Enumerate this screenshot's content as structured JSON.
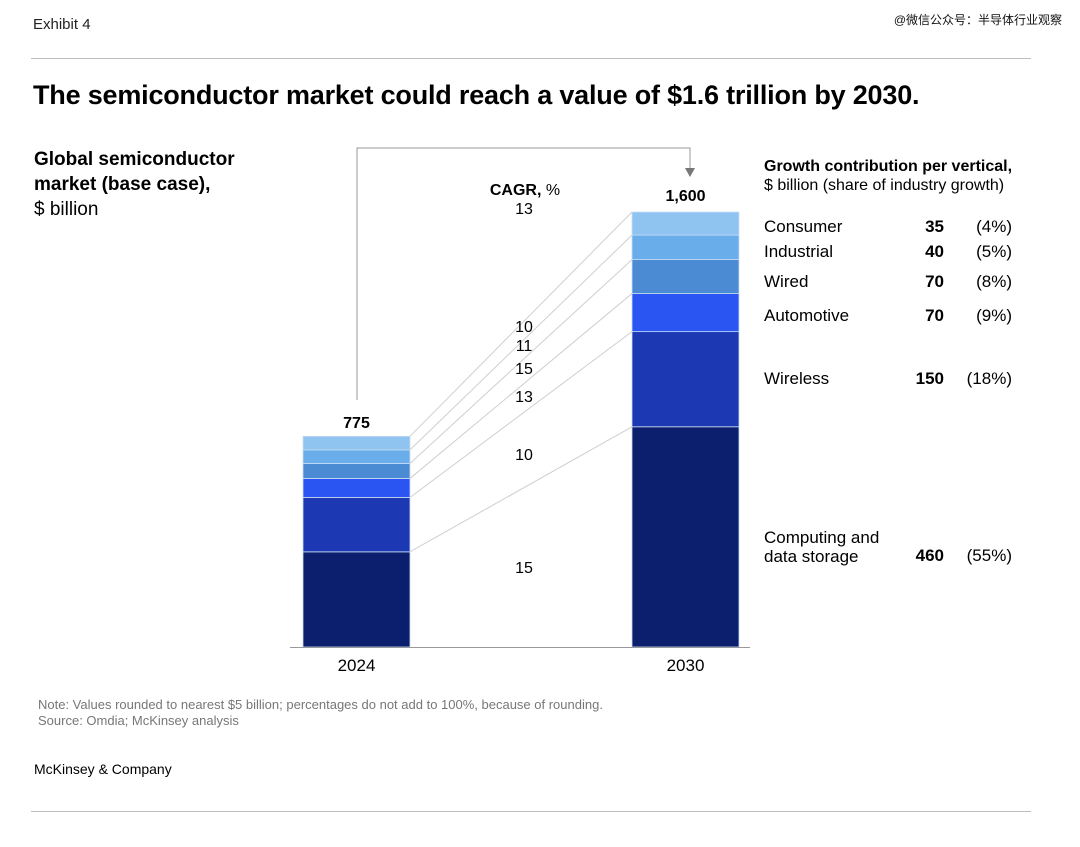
{
  "exhibit_label": "Exhibit 4",
  "watermark": "@微信公众号：半导体行业观察",
  "title": "The semiconductor market could reach a value of $1.6 trillion by 2030.",
  "colors": {
    "consumer": "#8fc4f0",
    "industrial": "#69aeea",
    "wired": "#4a8bd4",
    "automotive": "#2b55f2",
    "wireless": "#1d38b3",
    "computing": "#0c1f6e",
    "connector": "#cccccc"
  },
  "chart_data": {
    "type": "bar",
    "stacked": true,
    "title": "Global semiconductor market (base case),",
    "ylabel": "$ billion",
    "categories": [
      "2024",
      "2030"
    ],
    "totals": [
      "775",
      "1,600"
    ],
    "ylim": [
      0,
      1600
    ],
    "series": [
      {
        "name": "Computing and data storage",
        "key": "computing",
        "values": [
          350,
          810
        ],
        "cagr": "15"
      },
      {
        "name": "Wireless",
        "key": "wireless",
        "values": [
          200,
          350
        ],
        "cagr": "10"
      },
      {
        "name": "Automotive",
        "key": "automotive",
        "values": [
          70,
          140
        ],
        "cagr": "13"
      },
      {
        "name": "Wired",
        "key": "wired",
        "values": [
          55,
          125
        ],
        "cagr": "15"
      },
      {
        "name": "Industrial",
        "key": "industrial",
        "values": [
          50,
          90
        ],
        "cagr": "11"
      },
      {
        "name": "Consumer",
        "key": "consumer",
        "values": [
          50,
          85
        ],
        "cagr": "10"
      }
    ],
    "cagr_header": "CAGR,",
    "cagr_unit": " %",
    "cagr_total": "13"
  },
  "growth": {
    "header": "Growth contribution per vertical,",
    "subheader": "$ billion (share of industry growth)",
    "rows": [
      {
        "name": "Consumer",
        "value": "35",
        "share": "(4%)"
      },
      {
        "name": "Industrial",
        "value": "40",
        "share": "(5%)"
      },
      {
        "name": "Wired",
        "value": "70",
        "share": "(8%)"
      },
      {
        "name": "Automotive",
        "value": "70",
        "share": "(9%)"
      },
      {
        "name": "Wireless",
        "value": "150",
        "share": "(18%)"
      },
      {
        "name": "Computing and data storage",
        "value": "460",
        "share": "(55%)"
      }
    ]
  },
  "note": "Note: Values rounded to nearest $5 billion; percentages do not add to 100%, because of rounding.",
  "source": "Source: Omdia; McKinsey analysis",
  "brand": "McKinsey & Company"
}
